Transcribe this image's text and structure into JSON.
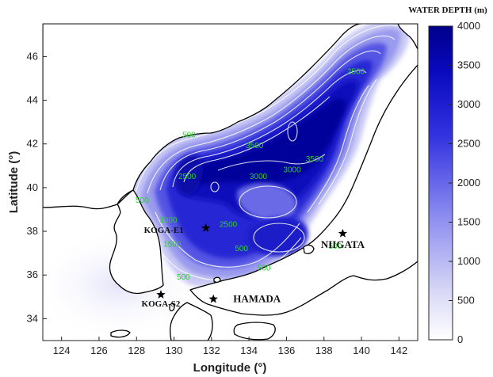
{
  "map": {
    "xlabel": "Longitude (°)",
    "ylabel": "Latitude (°)",
    "x_ticks": [
      "124",
      "126",
      "128",
      "130",
      "132",
      "134",
      "136",
      "138",
      "140",
      "142"
    ],
    "y_ticks": [
      "34",
      "36",
      "38",
      "40",
      "42",
      "44",
      "46"
    ],
    "x_range": [
      123,
      143
    ],
    "y_range": [
      33,
      47.5
    ],
    "colorbar": {
      "title": "WATER DEPTH (m)",
      "ticks": [
        "0",
        "500",
        "1000",
        "1500",
        "2000",
        "2500",
        "3000",
        "3500",
        "4000"
      ],
      "range": [
        0,
        4000
      ],
      "colors": [
        "#ffffff",
        "#00008b"
      ]
    },
    "stations": [
      {
        "name": "KOGA-E1",
        "lon": 131.7,
        "lat": 38.15
      },
      {
        "name": "KOGA-S2",
        "lon": 129.3,
        "lat": 35.1
      },
      {
        "name": "HAMADA",
        "lon": 132.1,
        "lat": 34.9
      },
      {
        "name": "NIIGATA",
        "lon": 139.0,
        "lat": 37.9
      }
    ],
    "contour_labels": [
      {
        "text": "500",
        "lon": 128.3,
        "lat": 39.3
      },
      {
        "text": "500",
        "lon": 130.5,
        "lat": 35.8
      },
      {
        "text": "500",
        "lon": 133.6,
        "lat": 37.1
      },
      {
        "text": "500",
        "lon": 134.8,
        "lat": 36.2
      },
      {
        "text": "500",
        "lon": 138.6,
        "lat": 37.2
      },
      {
        "text": "500",
        "lon": 130.8,
        "lat": 42.3
      },
      {
        "text": "1000",
        "lon": 129.7,
        "lat": 38.4
      },
      {
        "text": "1500",
        "lon": 129.9,
        "lat": 37.3
      },
      {
        "text": "2500",
        "lon": 130.7,
        "lat": 40.4
      },
      {
        "text": "2500",
        "lon": 132.9,
        "lat": 38.2
      },
      {
        "text": "2500",
        "lon": 139.7,
        "lat": 45.2
      },
      {
        "text": "3000",
        "lon": 134.5,
        "lat": 40.4
      },
      {
        "text": "3000",
        "lon": 136.3,
        "lat": 40.7
      },
      {
        "text": "3500",
        "lon": 134.3,
        "lat": 41.8
      },
      {
        "text": "3500",
        "lon": 137.5,
        "lat": 41.2
      }
    ],
    "colors": {
      "land_line": "#000000",
      "contour_line": "#ffffff",
      "contour_label": "#2bd12b",
      "deep": "#00008b"
    }
  }
}
